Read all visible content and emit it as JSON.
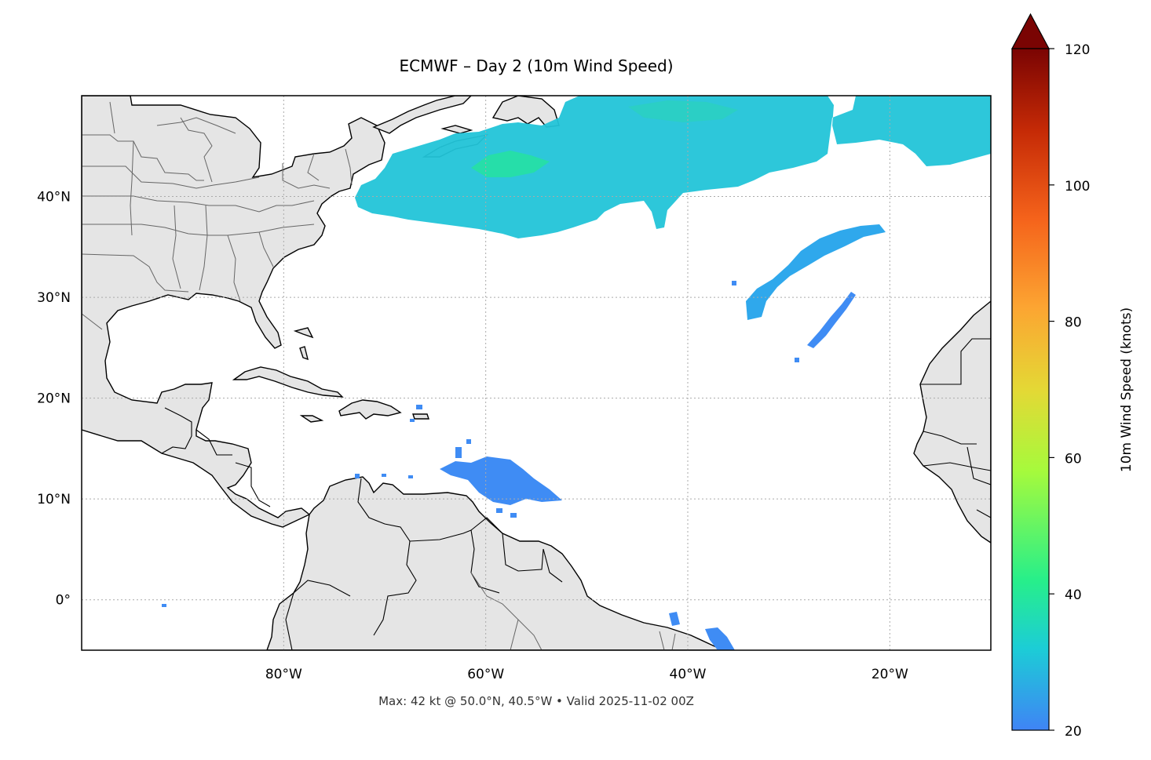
{
  "title": "ECMWF – Day 2 (10m Wind Speed)",
  "footer": "Max: 42 kt @ 50.0°N, 40.5°W • Valid 2025-11-02 00Z",
  "map": {
    "extent_lon": [
      -100,
      -10
    ],
    "extent_lat": [
      -5,
      50
    ],
    "land_color": "#e5e5e5",
    "ocean_color": "#ffffff",
    "gridlines": true,
    "lon_ticks": [
      {
        "value": -80,
        "label": "80°W"
      },
      {
        "value": -60,
        "label": "60°W"
      },
      {
        "value": -40,
        "label": "40°W"
      },
      {
        "value": -20,
        "label": "20°W"
      }
    ],
    "lat_ticks": [
      {
        "value": 40,
        "label": "40°N"
      },
      {
        "value": 30,
        "label": "30°N"
      },
      {
        "value": 20,
        "label": "20°N"
      },
      {
        "value": 10,
        "label": "10°N"
      },
      {
        "value": 0,
        "label": "0°"
      }
    ]
  },
  "colorbar": {
    "label": "10m Wind Speed (knots)",
    "min": 20,
    "max": 120,
    "extend": "max",
    "ticks": [
      {
        "value": 20,
        "label": "20"
      },
      {
        "value": 40,
        "label": "40"
      },
      {
        "value": 60,
        "label": "60"
      },
      {
        "value": 80,
        "label": "80"
      },
      {
        "value": 100,
        "label": "100"
      },
      {
        "value": 120,
        "label": "120"
      }
    ],
    "colors": [
      "#3f84f5",
      "#1ccdd6",
      "#27ef8a",
      "#a6fa3c",
      "#e4d835",
      "#fca532",
      "#f5631b",
      "#c52a06",
      "#7a0403"
    ],
    "overflow_color": "#7a0403"
  },
  "wind_regions": [
    {
      "name": "north-atlantic-jet",
      "speed": 32,
      "color": "#22c4d8"
    },
    {
      "name": "north-atlantic-core",
      "speed": 38,
      "color": "#26e2a0"
    },
    {
      "name": "central-atlantic-band",
      "speed": 27,
      "color": "#2fa8ec"
    },
    {
      "name": "trade-wind-patch",
      "speed": 22,
      "color": "#3f8cf4"
    },
    {
      "name": "equatorial-patch",
      "speed": 22,
      "color": "#3f8cf4"
    }
  ]
}
